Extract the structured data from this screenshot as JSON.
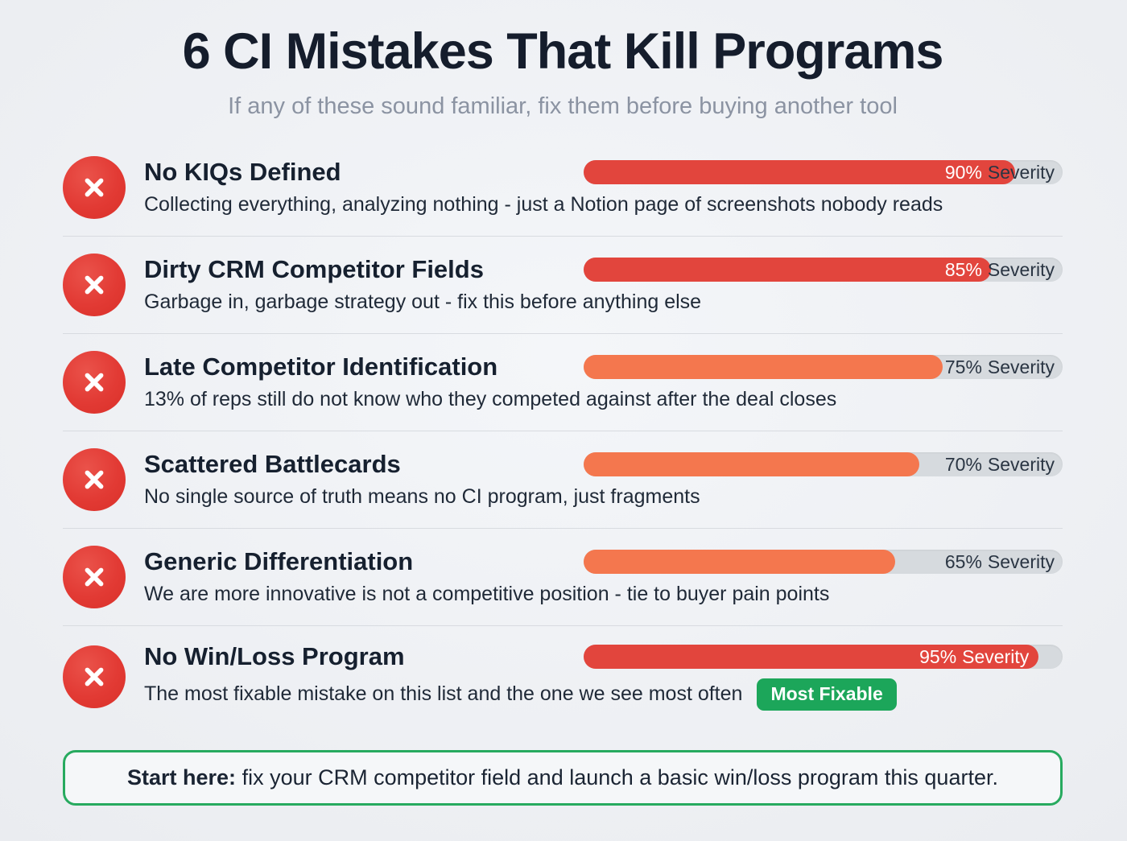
{
  "page": {
    "title": "6 CI Mistakes That Kill Programs",
    "subtitle": "If any of these sound familiar, fix them before buying another tool"
  },
  "severity_word": "Severity",
  "colors": {
    "high_severity_fill": "#e2453d",
    "mid_severity_fill": "#f4774e",
    "bar_track": "#d6dade",
    "icon_red": "#e23a34",
    "badge_green": "#1ca65a",
    "footer_border_green": "#27aa5f",
    "title_dark": "#151d2c",
    "subtitle_gray": "#8b93a2"
  },
  "mistakes": [
    {
      "title": "No KIQs Defined",
      "description": "Collecting everything, analyzing nothing - just a Notion page of screenshots nobody reads",
      "severity_pct": 90,
      "severity_text": "90%",
      "fill_color": "#e2453d",
      "pct_color": "#ffffff",
      "word_color": "#2a3543",
      "label_inside_fill": false
    },
    {
      "title": "Dirty CRM Competitor Fields",
      "description": "Garbage in, garbage strategy out - fix this before anything else",
      "severity_pct": 85,
      "severity_text": "85%",
      "fill_color": "#e2453d",
      "pct_color": "#ffffff",
      "word_color": "#2a3543",
      "label_inside_fill": false
    },
    {
      "title": "Late Competitor Identification",
      "description": "13% of reps still do not know who they competed against after the deal closes",
      "severity_pct": 75,
      "severity_text": "75%",
      "fill_color": "#f4774e",
      "pct_color": "#2a3543",
      "word_color": "#2a3543",
      "label_inside_fill": false
    },
    {
      "title": "Scattered Battlecards",
      "description": "No single source of truth means no CI program, just fragments",
      "severity_pct": 70,
      "severity_text": "70%",
      "fill_color": "#f4774e",
      "pct_color": "#2a3543",
      "word_color": "#2a3543",
      "label_inside_fill": false
    },
    {
      "title": "Generic Differentiation",
      "description": "We are more innovative is not a competitive position - tie to buyer pain points",
      "severity_pct": 65,
      "severity_text": "65%",
      "fill_color": "#f4774e",
      "pct_color": "#2a3543",
      "word_color": "#2a3543",
      "label_inside_fill": false
    },
    {
      "title": "No Win/Loss Program",
      "description": "The most fixable mistake on this list and the one we see most often",
      "severity_pct": 95,
      "severity_text": "95%",
      "fill_color": "#e2453d",
      "pct_color": "#ffffff",
      "word_color": "#ffffff",
      "label_inside_fill": true,
      "badge": "Most Fixable"
    }
  ],
  "footer": {
    "bold": "Start here:",
    "text": "fix your CRM competitor field and launch a basic win/loss program this quarter."
  },
  "chart_data": {
    "type": "bar",
    "orientation": "horizontal",
    "title": "6 CI Mistakes That Kill Programs",
    "subtitle": "If any of these sound familiar, fix them before buying another tool",
    "categories": [
      "No KIQs Defined",
      "Dirty CRM Competitor Fields",
      "Late Competitor Identification",
      "Scattered Battlecards",
      "Generic Differentiation",
      "No Win/Loss Program"
    ],
    "values": [
      90,
      85,
      75,
      70,
      65,
      95
    ],
    "value_unit": "% Severity",
    "xlim": [
      0,
      100
    ],
    "legend": "none",
    "annotations": [
      "Most Fixable (No Win/Loss Program)",
      "Start here: fix your CRM competitor field and launch a basic win/loss program this quarter."
    ]
  }
}
